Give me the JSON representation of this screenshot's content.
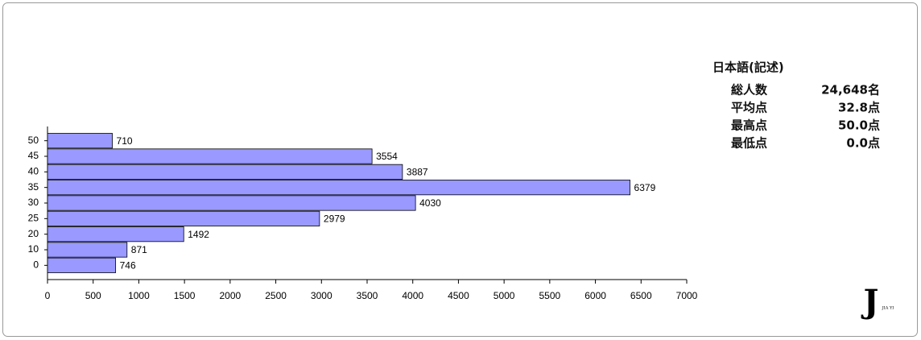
{
  "chart_data": {
    "type": "bar",
    "orientation": "horizontal",
    "categories": [
      "50",
      "45",
      "40",
      "35",
      "30",
      "25",
      "20",
      "10",
      "0"
    ],
    "values": [
      710,
      3554,
      3887,
      6379,
      4030,
      2979,
      1492,
      871,
      746
    ],
    "color": "#9999ff",
    "xlim": [
      0,
      7000
    ],
    "xticks": [
      0,
      500,
      1000,
      1500,
      2000,
      2500,
      3000,
      3500,
      4000,
      4500,
      5000,
      5500,
      6000,
      6500,
      7000
    ]
  },
  "stats": {
    "title": "日本語(記述)",
    "rows": [
      [
        "総人数",
        "24,648名"
      ],
      [
        "平均点",
        "32.8点"
      ],
      [
        "最高点",
        "50.0点"
      ],
      [
        "最低点",
        "0.0点"
      ]
    ]
  },
  "logo": {
    "mark": "J",
    "text": "JIA YI"
  }
}
